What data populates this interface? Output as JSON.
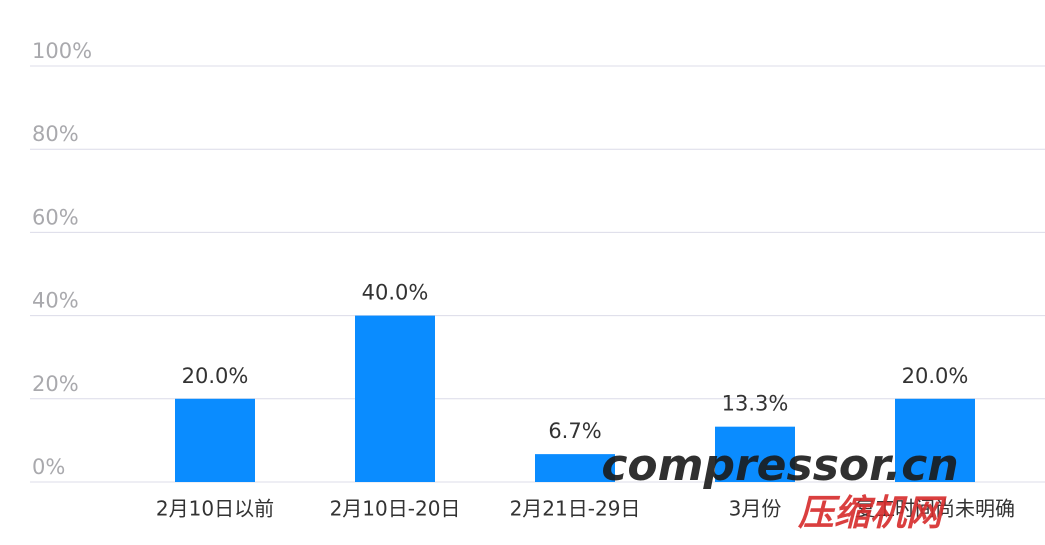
{
  "chart_data": {
    "type": "bar",
    "categories": [
      "2月10日以前",
      "2月10日-20日",
      "2月21日-29日",
      "3月份",
      "复工时间尚未明确"
    ],
    "values": [
      20.0,
      40.0,
      6.7,
      13.3,
      20.0
    ],
    "value_labels": [
      "20.0%",
      "40.0%",
      "6.7%",
      "13.3%",
      "20.0%"
    ],
    "color": "#0a8cff",
    "ylim": [
      0,
      100
    ],
    "yticks": [
      {
        "value": 0,
        "label": "0%"
      },
      {
        "value": 20,
        "label": "20%"
      },
      {
        "value": 40,
        "label": "40%"
      },
      {
        "value": 60,
        "label": "60%"
      },
      {
        "value": 80,
        "label": "80%"
      },
      {
        "value": 100,
        "label": "100%"
      }
    ],
    "grid": true
  },
  "watermark": {
    "logo": "compressor.cn",
    "name": "压缩机网"
  }
}
